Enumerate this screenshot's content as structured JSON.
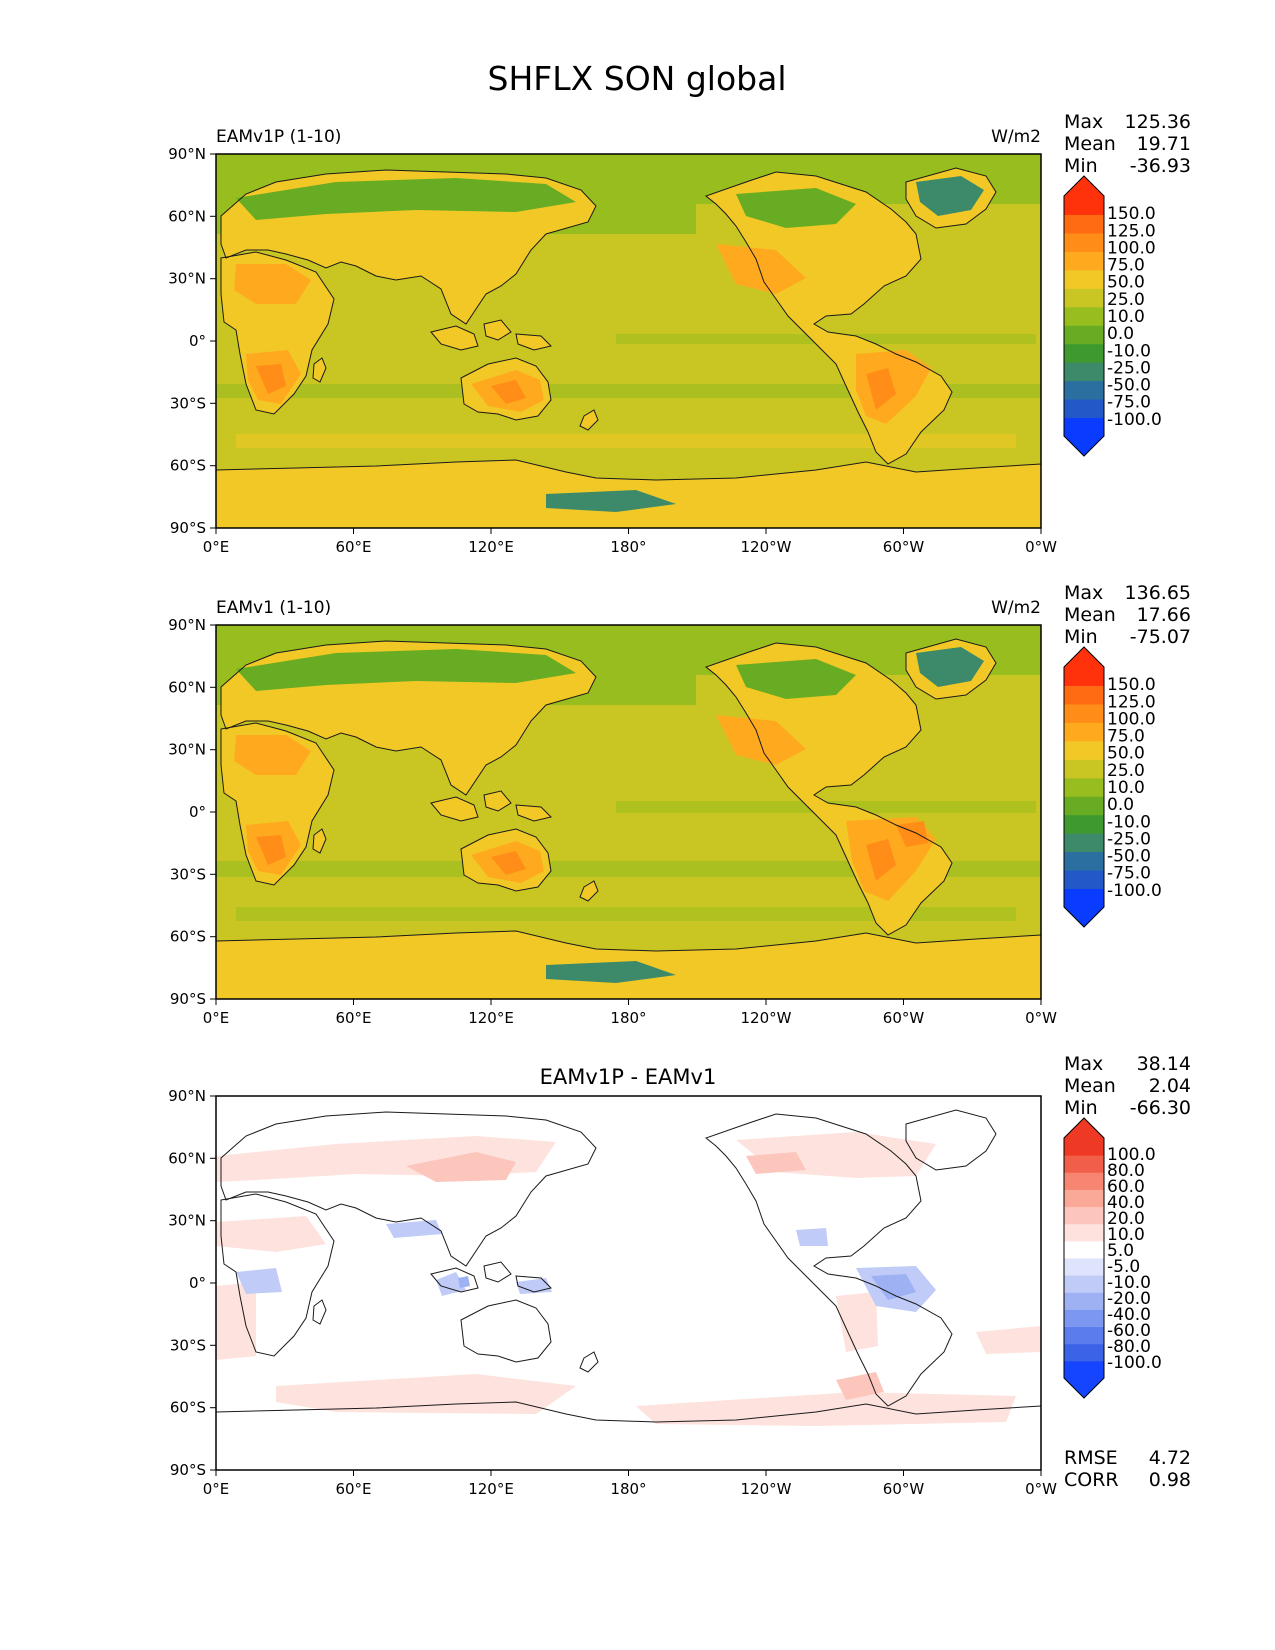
{
  "page": {
    "title": "SHFLX SON global"
  },
  "colors": {
    "ref_levels": [
      "#0a3cff",
      "#2258c8",
      "#2b6fa0",
      "#3c8a6a",
      "#3e9a2e",
      "#67ac22",
      "#98bd1e",
      "#c9c623",
      "#f2c826",
      "#ffaa1e",
      "#ff8d18",
      "#ff6b12",
      "#ff320c"
    ],
    "diff_levels": [
      "#1545ff",
      "#3a63e8",
      "#5a7cec",
      "#7c97ef",
      "#9eb1f3",
      "#c0ccf7",
      "#dde4fb",
      "#ffffff",
      "#fde2de",
      "#fcc6bd",
      "#faa898",
      "#f68671",
      "#f15f4a",
      "#ee3a24"
    ],
    "land_line": "#1a1a1a"
  },
  "panels": [
    {
      "id": "test",
      "title_left": "EAMv1P (1-10)",
      "title_center": "",
      "units": "W/m2",
      "stats": {
        "max_label": "Max",
        "max": "125.36",
        "mean_label": "Mean",
        "mean": "19.71",
        "min_label": "Min",
        "min": "-36.93"
      },
      "colorbar": {
        "kind": "ref",
        "labels": [
          "150.0",
          "125.0",
          "100.0",
          "75.0",
          "50.0",
          "25.0",
          "10.0",
          "0.0",
          "-10.0",
          "-25.0",
          "-50.0",
          "-75.0",
          "-100.0"
        ]
      },
      "bottom_stats": null
    },
    {
      "id": "ref",
      "title_left": "EAMv1 (1-10)",
      "title_center": "",
      "units": "W/m2",
      "stats": {
        "max_label": "Max",
        "max": "136.65",
        "mean_label": "Mean",
        "mean": "17.66",
        "min_label": "Min",
        "min": "-75.07"
      },
      "colorbar": {
        "kind": "ref",
        "labels": [
          "150.0",
          "125.0",
          "100.0",
          "75.0",
          "50.0",
          "25.0",
          "10.0",
          "0.0",
          "-10.0",
          "-25.0",
          "-50.0",
          "-75.0",
          "-100.0"
        ]
      },
      "bottom_stats": null
    },
    {
      "id": "diff",
      "title_left": "",
      "title_center": "EAMv1P - EAMv1",
      "units": "",
      "stats": {
        "max_label": "Max",
        "max": "38.14",
        "mean_label": "Mean",
        "mean": "2.04",
        "min_label": "Min",
        "min": "-66.30"
      },
      "colorbar": {
        "kind": "diff",
        "labels": [
          "100.0",
          "80.0",
          "60.0",
          "40.0",
          "20.0",
          "10.0",
          "5.0",
          "-5.0",
          "-10.0",
          "-20.0",
          "-40.0",
          "-60.0",
          "-80.0",
          "-100.0"
        ]
      },
      "bottom_stats": {
        "rmse_label": "RMSE",
        "rmse": "4.72",
        "corr_label": "CORR",
        "corr": "0.98"
      }
    }
  ],
  "chart_data": {
    "type": "heatmap",
    "title": "SHFLX SON global",
    "variable": "SHFLX",
    "season": "SON",
    "units": "W/m2",
    "x_ticks": [
      "0°E",
      "60°E",
      "120°E",
      "180°",
      "120°W",
      "60°W",
      "0°W"
    ],
    "y_ticks": [
      "90°N",
      "60°N",
      "30°N",
      "0°",
      "30°S",
      "60°S",
      "90°S"
    ],
    "xlim": [
      0,
      360
    ],
    "ylim": [
      -90,
      90
    ],
    "panels": [
      {
        "name": "EAMv1P (1-10)",
        "max": 125.36,
        "mean": 19.71,
        "min": -36.93,
        "levels": [
          -100,
          -75,
          -50,
          -25,
          -10,
          0,
          10,
          25,
          50,
          75,
          100,
          125,
          150
        ]
      },
      {
        "name": "EAMv1 (1-10)",
        "max": 136.65,
        "mean": 17.66,
        "min": -75.07,
        "levels": [
          -100,
          -75,
          -50,
          -25,
          -10,
          0,
          10,
          25,
          50,
          75,
          100,
          125,
          150
        ]
      },
      {
        "name": "EAMv1P - EAMv1",
        "max": 38.14,
        "mean": 2.04,
        "min": -66.3,
        "levels": [
          -100,
          -80,
          -60,
          -40,
          -20,
          -10,
          -5,
          5,
          10,
          20,
          40,
          60,
          80,
          100
        ],
        "rmse": 4.72,
        "corr": 0.98
      }
    ]
  }
}
